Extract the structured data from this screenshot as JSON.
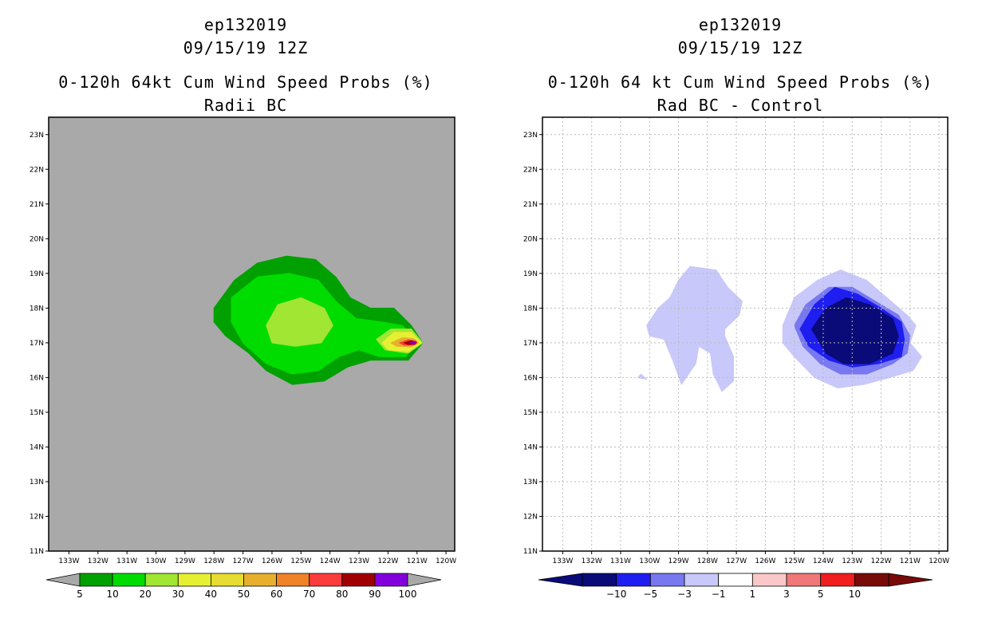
{
  "panels": [
    {
      "storm": "ep132019",
      "datetime": "09/15/19 12Z",
      "title": "0-120h 64kt Cum Wind Speed Probs (%)",
      "subtitle": "Radii BC"
    },
    {
      "storm": "ep132019",
      "datetime": "09/15/19 12Z",
      "title": "0-120h 64 kt Cum Wind Speed Probs (%)",
      "subtitle": "Rad BC - Control"
    }
  ],
  "chart_data": [
    {
      "type": "heatmap",
      "title": "0-120h 64kt Cum Wind Speed Probs (%)",
      "subtitle": "Radii BC",
      "background_color": "#a9a9a9",
      "grid": false,
      "xlim": [
        -133.7,
        -119.7
      ],
      "ylim": [
        11,
        23.5
      ],
      "x_ticks": [
        "133W",
        "132W",
        "131W",
        "130W",
        "129W",
        "128W",
        "127W",
        "126W",
        "125W",
        "124W",
        "123W",
        "122W",
        "121W",
        "120W"
      ],
      "y_ticks": [
        "11N",
        "12N",
        "13N",
        "14N",
        "15N",
        "16N",
        "17N",
        "18N",
        "19N",
        "20N",
        "21N",
        "22N",
        "23N"
      ],
      "colorbar": {
        "levels": [
          "5",
          "10",
          "20",
          "30",
          "40",
          "50",
          "60",
          "70",
          "80",
          "90",
          "100"
        ],
        "colors": [
          "#00a000",
          "#00dc00",
          "#a0e632",
          "#e6f032",
          "#e6dc32",
          "#e6af2d",
          "#f08228",
          "#fa3c3c",
          "#a00000",
          "#8200dc"
        ],
        "under_color": "#a9a9a9",
        "over_color": "#a9a9a9"
      },
      "contours": [
        {
          "level": 5,
          "color": "#00a000",
          "points": [
            [
              -128.0,
              18.0
            ],
            [
              -127.3,
              18.8
            ],
            [
              -126.5,
              19.3
            ],
            [
              -125.5,
              19.5
            ],
            [
              -124.5,
              19.4
            ],
            [
              -123.8,
              18.9
            ],
            [
              -123.3,
              18.3
            ],
            [
              -122.6,
              18.0
            ],
            [
              -121.8,
              18.0
            ],
            [
              -121.2,
              17.5
            ],
            [
              -120.8,
              17.0
            ],
            [
              -121.3,
              16.5
            ],
            [
              -122.0,
              16.5
            ],
            [
              -122.6,
              16.5
            ],
            [
              -123.4,
              16.3
            ],
            [
              -124.2,
              15.9
            ],
            [
              -125.3,
              15.8
            ],
            [
              -126.2,
              16.2
            ],
            [
              -126.8,
              16.7
            ],
            [
              -127.6,
              17.2
            ],
            [
              -128.0,
              17.6
            ]
          ]
        },
        {
          "level": 10,
          "color": "#00dc00",
          "points": [
            [
              -127.4,
              18.3
            ],
            [
              -126.5,
              18.9
            ],
            [
              -125.4,
              19.0
            ],
            [
              -124.4,
              18.8
            ],
            [
              -123.8,
              18.2
            ],
            [
              -123.1,
              17.7
            ],
            [
              -122.2,
              17.6
            ],
            [
              -121.5,
              17.5
            ],
            [
              -121.0,
              17.0
            ],
            [
              -121.4,
              16.6
            ],
            [
              -122.3,
              16.6
            ],
            [
              -123.0,
              16.8
            ],
            [
              -123.7,
              16.6
            ],
            [
              -124.4,
              16.2
            ],
            [
              -125.3,
              16.1
            ],
            [
              -126.2,
              16.4
            ],
            [
              -127.0,
              17.0
            ],
            [
              -127.4,
              17.6
            ]
          ]
        },
        {
          "level": 20,
          "color": "#a0e632",
          "points": [
            [
              -126.2,
              17.5
            ],
            [
              -125.8,
              18.1
            ],
            [
              -125.0,
              18.3
            ],
            [
              -124.2,
              18.0
            ],
            [
              -123.9,
              17.5
            ],
            [
              -124.3,
              17.0
            ],
            [
              -125.2,
              16.9
            ],
            [
              -126.0,
              17.0
            ]
          ]
        },
        {
          "level": 20,
          "color": "#a0e632",
          "points": [
            [
              -122.4,
              17.1
            ],
            [
              -121.9,
              17.4
            ],
            [
              -121.2,
              17.4
            ],
            [
              -120.8,
              17.0
            ],
            [
              -121.3,
              16.7
            ],
            [
              -122.1,
              16.8
            ]
          ]
        },
        {
          "level": 30,
          "color": "#e6f032",
          "points": [
            [
              -122.2,
              17.0
            ],
            [
              -121.8,
              17.3
            ],
            [
              -121.2,
              17.3
            ],
            [
              -120.85,
              17.0
            ],
            [
              -121.3,
              16.75
            ],
            [
              -122.0,
              16.8
            ]
          ]
        },
        {
          "level": 50,
          "color": "#e6af2d",
          "points": [
            [
              -121.9,
              17.0
            ],
            [
              -121.5,
              17.15
            ],
            [
              -121.1,
              17.12
            ],
            [
              -120.95,
              17.0
            ],
            [
              -121.2,
              16.88
            ],
            [
              -121.7,
              16.9
            ]
          ]
        },
        {
          "level": 70,
          "color": "#fa3c3c",
          "points": [
            [
              -121.6,
              17.0
            ],
            [
              -121.3,
              17.09
            ],
            [
              -121.05,
              17.05
            ],
            [
              -121.0,
              17.0
            ],
            [
              -121.1,
              16.94
            ],
            [
              -121.45,
              16.93
            ]
          ]
        },
        {
          "level": 80,
          "color": "#a00000",
          "points": [
            [
              -121.45,
              17.0
            ],
            [
              -121.2,
              17.06
            ],
            [
              -121.03,
              17.02
            ],
            [
              -121.05,
              16.97
            ],
            [
              -121.3,
              16.95
            ]
          ]
        },
        {
          "level": 90,
          "color": "#8200dc",
          "points": [
            [
              -121.25,
              17.0
            ],
            [
              -121.1,
              17.03
            ],
            [
              -121.04,
              17.0
            ],
            [
              -121.12,
              16.97
            ]
          ]
        }
      ]
    },
    {
      "type": "heatmap",
      "title": "0-120h 64 kt Cum Wind Speed Probs (%)",
      "subtitle": "Rad BC - Control",
      "background_color": "#ffffff",
      "grid": true,
      "xlim": [
        -133.7,
        -119.7
      ],
      "ylim": [
        11,
        23.5
      ],
      "x_ticks": [
        "133W",
        "132W",
        "131W",
        "130W",
        "129W",
        "128W",
        "127W",
        "126W",
        "125W",
        "124W",
        "123W",
        "122W",
        "121W",
        "120W"
      ],
      "y_ticks": [
        "11N",
        "12N",
        "13N",
        "14N",
        "15N",
        "16N",
        "17N",
        "18N",
        "19N",
        "20N",
        "21N",
        "22N",
        "23N"
      ],
      "colorbar": {
        "levels": [
          "-10",
          "-5",
          "-3",
          "-1",
          "1",
          "3",
          "5",
          "10"
        ],
        "colors": [
          "#0a0a78",
          "#1e1ef0",
          "#7878f0",
          "#c8c8fa",
          "#ffffff",
          "#fac8c8",
          "#f07878",
          "#f01e1e",
          "#780a0a"
        ],
        "under_color": "#0a0a78",
        "over_color": "#780a0a"
      },
      "contours": [
        {
          "level": -1,
          "color": "#c8c8fa",
          "points": [
            [
              -129.0,
              18.8
            ],
            [
              -128.6,
              19.2
            ],
            [
              -127.7,
              19.1
            ],
            [
              -127.3,
              18.6
            ],
            [
              -126.8,
              18.2
            ],
            [
              -126.9,
              17.8
            ],
            [
              -127.4,
              17.4
            ],
            [
              -127.4,
              17.2
            ],
            [
              -127.1,
              16.6
            ],
            [
              -127.1,
              15.9
            ],
            [
              -127.5,
              15.6
            ],
            [
              -127.8,
              16.1
            ],
            [
              -127.9,
              16.7
            ],
            [
              -128.3,
              16.9
            ],
            [
              -128.4,
              16.4
            ],
            [
              -128.9,
              15.8
            ],
            [
              -129.2,
              16.5
            ],
            [
              -129.5,
              17.1
            ],
            [
              -130.0,
              17.2
            ],
            [
              -130.1,
              17.5
            ],
            [
              -129.7,
              18.0
            ],
            [
              -129.3,
              18.3
            ]
          ]
        },
        {
          "level": -1,
          "color": "#c8c8fa",
          "points": [
            [
              -130.4,
              16.0
            ],
            [
              -130.1,
              15.95
            ],
            [
              -130.3,
              16.1
            ]
          ]
        },
        {
          "level": -1,
          "color": "#c8c8fa",
          "points": [
            [
              -125.4,
              17.5
            ],
            [
              -125.0,
              18.3
            ],
            [
              -124.2,
              18.8
            ],
            [
              -123.4,
              19.1
            ],
            [
              -122.5,
              18.8
            ],
            [
              -121.8,
              18.3
            ],
            [
              -121.1,
              17.8
            ],
            [
              -120.8,
              17.5
            ],
            [
              -121.0,
              17.0
            ],
            [
              -120.6,
              16.6
            ],
            [
              -120.9,
              16.2
            ],
            [
              -121.7,
              16.0
            ],
            [
              -122.6,
              15.8
            ],
            [
              -123.5,
              15.7
            ],
            [
              -124.3,
              16.0
            ],
            [
              -125.0,
              16.6
            ],
            [
              -125.4,
              17.0
            ]
          ]
        },
        {
          "level": -3,
          "color": "#7878f0",
          "points": [
            [
              -125.0,
              17.5
            ],
            [
              -124.6,
              18.1
            ],
            [
              -123.8,
              18.6
            ],
            [
              -123.0,
              18.6
            ],
            [
              -122.2,
              18.2
            ],
            [
              -121.4,
              17.8
            ],
            [
              -121.0,
              17.2
            ],
            [
              -121.1,
              16.7
            ],
            [
              -121.6,
              16.4
            ],
            [
              -122.5,
              16.1
            ],
            [
              -123.4,
              16.1
            ],
            [
              -124.1,
              16.4
            ],
            [
              -124.7,
              16.9
            ]
          ]
        },
        {
          "level": -5,
          "color": "#1e1ef0",
          "points": [
            [
              -124.8,
              17.4
            ],
            [
              -124.3,
              18.1
            ],
            [
              -123.6,
              18.6
            ],
            [
              -122.8,
              18.4
            ],
            [
              -122.0,
              18.0
            ],
            [
              -121.3,
              17.6
            ],
            [
              -121.2,
              17.1
            ],
            [
              -121.3,
              16.6
            ],
            [
              -122.1,
              16.4
            ],
            [
              -123.0,
              16.3
            ],
            [
              -123.8,
              16.5
            ],
            [
              -124.5,
              16.9
            ]
          ]
        },
        {
          "level": -10,
          "color": "#0a0a78",
          "points": [
            [
              -124.4,
              17.4
            ],
            [
              -123.9,
              18.0
            ],
            [
              -123.2,
              18.3
            ],
            [
              -122.4,
              18.1
            ],
            [
              -121.6,
              17.7
            ],
            [
              -121.4,
              17.2
            ],
            [
              -121.6,
              16.7
            ],
            [
              -122.4,
              16.4
            ],
            [
              -123.3,
              16.4
            ],
            [
              -123.9,
              16.7
            ]
          ]
        }
      ]
    }
  ]
}
